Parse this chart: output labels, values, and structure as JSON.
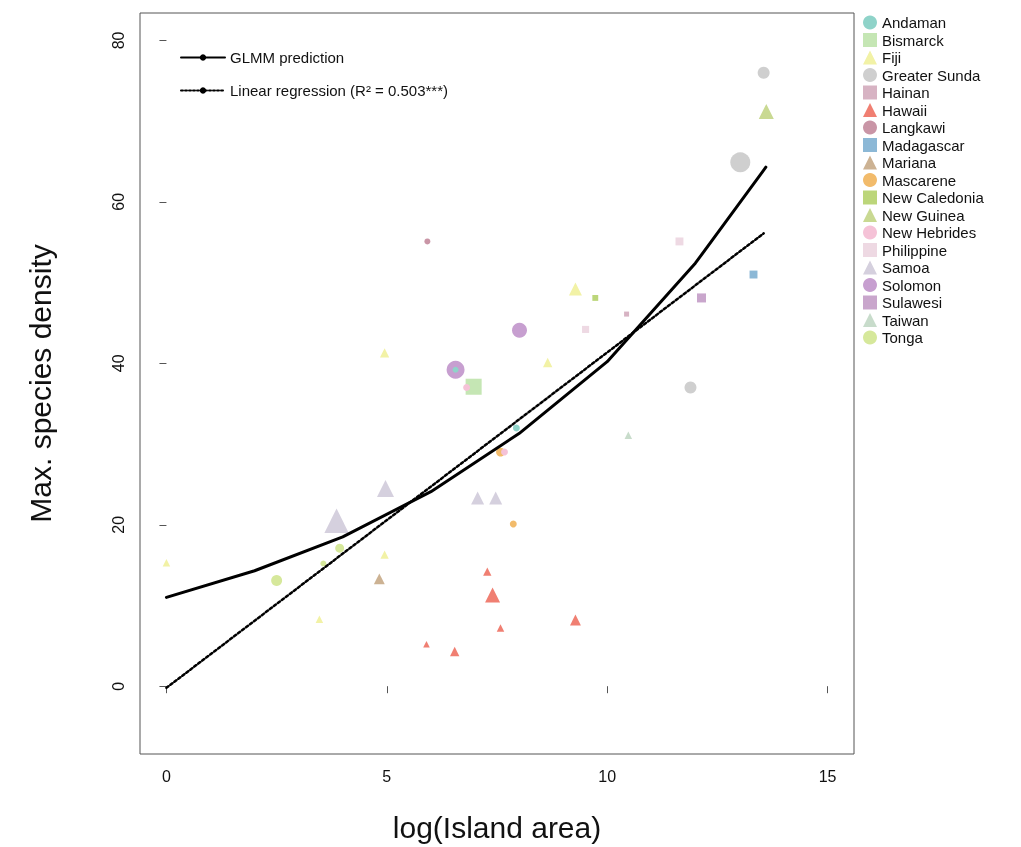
{
  "chart_data": {
    "type": "bubble",
    "xlabel": "log(Island area)",
    "ylabel": "Max. species density",
    "xlim": [
      -0.6,
      15.6
    ],
    "ylim": [
      -8.4,
      83.4
    ],
    "xticks": [
      0,
      5,
      10,
      15
    ],
    "yticks": [
      0,
      20,
      40,
      60,
      80
    ],
    "grid": false,
    "legend": "right",
    "series": [
      {
        "name": "Andaman",
        "color": "#8fd3c9",
        "marker": "circle",
        "x": [
          6.56,
          7.94
        ],
        "values": [
          39.2,
          32.0
        ],
        "sizes": [
          0.09,
          0.12
        ]
      },
      {
        "name": "Bismarck",
        "color": "#c5e6b4",
        "marker": "square",
        "x": [
          6.97
        ],
        "values": [
          37.1
        ],
        "sizes": [
          0.82
        ]
      },
      {
        "name": "Fiji",
        "color": "#f2f2a6",
        "marker": "triangle",
        "x": [
          0,
          4.95,
          4.95,
          3.47,
          9.28,
          8.65
        ],
        "values": [
          15.3,
          41.3,
          16.3,
          8.3,
          49.2,
          40.1
        ],
        "sizes": [
          0.09,
          0.14,
          0.11,
          0.09,
          0.27,
          0.14
        ]
      },
      {
        "name": "Greater Sunda",
        "color": "#cfcfcf",
        "marker": "circle",
        "x": [
          13.55,
          13.02,
          11.89
        ],
        "values": [
          76.0,
          64.9,
          37.0
        ],
        "sizes": [
          0.36,
          1,
          0.36
        ]
      },
      {
        "name": "Hainan",
        "color": "#d7b3c3",
        "marker": "square",
        "x": [
          10.44
        ],
        "values": [
          46.1
        ],
        "sizes": [
          0.08
        ]
      },
      {
        "name": "Hawaii",
        "color": "#f07f72",
        "marker": "triangle",
        "x": [
          5.9,
          6.54,
          7.28,
          7.4,
          7.58,
          9.28
        ],
        "values": [
          5.2,
          4.3,
          14.2,
          11.3,
          7.2,
          8.2
        ],
        "sizes": [
          0.07,
          0.14,
          0.11,
          0.36,
          0.09,
          0.19
        ]
      },
      {
        "name": "Langkawi",
        "color": "#c995a6",
        "marker": "circle",
        "x": [
          5.92
        ],
        "values": [
          55.1
        ],
        "sizes": [
          0.09
        ]
      },
      {
        "name": "Madagascar",
        "color": "#8cb8d6",
        "marker": "square",
        "x": [
          13.32
        ],
        "values": [
          51.0
        ],
        "sizes": [
          0.2
        ]
      },
      {
        "name": "Mariana",
        "color": "#ccb293",
        "marker": "triangle",
        "x": [
          4.83
        ],
        "values": [
          13.3
        ],
        "sizes": [
          0.19
        ]
      },
      {
        "name": "Mascarene",
        "color": "#f2bb6b",
        "marker": "circle",
        "x": [
          7.58,
          7.87
        ],
        "values": [
          29.0,
          20.1
        ],
        "sizes": [
          0.2,
          0.12
        ]
      },
      {
        "name": "New Caledonia",
        "color": "#bcd67a",
        "marker": "square",
        "x": [
          9.73
        ],
        "values": [
          48.1
        ],
        "sizes": [
          0.11
        ]
      },
      {
        "name": "New Guinea",
        "color": "#c9d992",
        "marker": "triangle",
        "x": [
          13.61
        ],
        "values": [
          71.2
        ],
        "sizes": [
          0.36
        ]
      },
      {
        "name": "New Hebrides",
        "color": "#f5c2d7",
        "marker": "circle",
        "x": [
          6.81,
          7.67
        ],
        "values": [
          37.0,
          29.0
        ],
        "sizes": [
          0.12,
          0.12
        ]
      },
      {
        "name": "Philippine",
        "color": "#eed9e3",
        "marker": "square",
        "x": [
          11.64,
          9.51
        ],
        "values": [
          55.1,
          44.2
        ],
        "sizes": [
          0.2,
          0.16
        ]
      },
      {
        "name": "Samoa",
        "color": "#d5d0de",
        "marker": "triangle",
        "x": [
          3.86,
          4.97,
          7.06,
          7.47
        ],
        "values": [
          20.5,
          24.5,
          23.3,
          23.3
        ],
        "sizes": [
          0.95,
          0.46,
          0.27,
          0.27
        ]
      },
      {
        "name": "Solomon",
        "color": "#c79fd0",
        "marker": "circle",
        "x": [
          6.56,
          8.01
        ],
        "values": [
          39.2,
          44.1
        ],
        "sizes": [
          0.81,
          0.56
        ]
      },
      {
        "name": "Sulawesi",
        "color": "#c9a6cc",
        "marker": "square",
        "x": [
          12.14
        ],
        "values": [
          48.1
        ],
        "sizes": [
          0.26
        ]
      },
      {
        "name": "Taiwan",
        "color": "#c8dccb",
        "marker": "triangle",
        "x": [
          10.48
        ],
        "values": [
          31.1
        ],
        "sizes": [
          0.09
        ]
      },
      {
        "name": "Tonga",
        "color": "#d6e89b",
        "marker": "circle",
        "x": [
          2.5,
          3.93,
          3.56
        ],
        "values": [
          13.1,
          17.1,
          15.2
        ],
        "sizes": [
          0.3,
          0.2,
          0.09
        ]
      },
      {
        "name": "GLMM prediction",
        "type": "line",
        "color": "#000000",
        "line_style": "solid",
        "marker": "none",
        "x": [
          0,
          2,
          4,
          6,
          8,
          10,
          12,
          13.6
        ],
        "values": [
          11.0,
          14.3,
          18.5,
          24.1,
          31.3,
          40.2,
          52.4,
          64.3
        ]
      },
      {
        "name": "Linear regression (R² = 0.503***)",
        "type": "line",
        "color": "#000000",
        "line_style": "dotted",
        "marker": "none",
        "x": [
          0,
          13.55
        ],
        "values": [
          -0.2,
          56.1
        ]
      }
    ]
  }
}
